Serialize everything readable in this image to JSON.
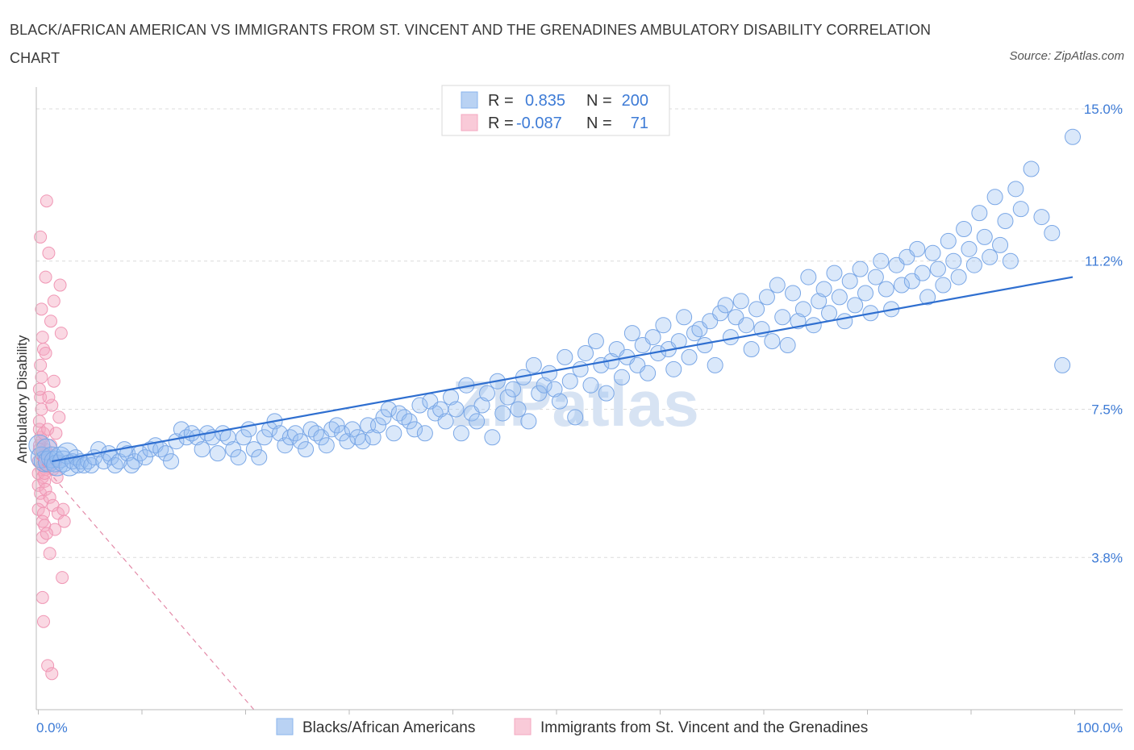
{
  "title": "BLACK/AFRICAN AMERICAN VS IMMIGRANTS FROM ST. VINCENT AND THE GRENADINES AMBULATORY DISABILITY CORRELATION CHART",
  "source": "Source: ZipAtlas.com",
  "watermark": "ZIPatlas",
  "colors": {
    "blue": "#8ab4ec",
    "blue_line": "#2f6fd0",
    "pink": "#f4a8c0",
    "pink_line": "#e3799c",
    "accent_text": "#3d7bd6"
  },
  "legend": {
    "r_label": "R =",
    "n_label": "N =",
    "rows": [
      {
        "r": "0.835",
        "n": "200"
      },
      {
        "r": "-0.087",
        "n": "71"
      }
    ]
  },
  "chart_data": {
    "type": "scatter",
    "ylabel": "Ambulatory Disability",
    "xlim": [
      0,
      100
    ],
    "ylim": [
      0.0,
      15.0
    ],
    "x_tick_labels": [
      "0.0%",
      "100.0%"
    ],
    "y_ticks": [
      {
        "value": 3.8,
        "label": "3.8%"
      },
      {
        "value": 7.5,
        "label": "7.5%"
      },
      {
        "value": 11.2,
        "label": "11.2%"
      },
      {
        "value": 15.0,
        "label": "15.0%"
      }
    ],
    "grid": true,
    "series": [
      {
        "name": "Blacks/African Americans",
        "r": 0.835,
        "n": 200,
        "trend": {
          "x": [
            1.5,
            100
          ],
          "y": [
            6.2,
            10.8
          ]
        },
        "points": [
          [
            0.3,
            6.6
          ],
          [
            0.5,
            6.3
          ],
          [
            0.8,
            6.2
          ],
          [
            1.0,
            6.5
          ],
          [
            1.2,
            6.2
          ],
          [
            1.5,
            6.3
          ],
          [
            1.8,
            6.2
          ],
          [
            2.0,
            6.1
          ],
          [
            2.3,
            6.3
          ],
          [
            2.6,
            6.2
          ],
          [
            3.0,
            6.4
          ],
          [
            3.2,
            6.1
          ],
          [
            3.5,
            6.2
          ],
          [
            3.8,
            6.3
          ],
          [
            4.0,
            6.1
          ],
          [
            4.3,
            6.2
          ],
          [
            4.6,
            6.1
          ],
          [
            5.0,
            6.2
          ],
          [
            5.3,
            6.1
          ],
          [
            5.6,
            6.3
          ],
          [
            6.0,
            6.5
          ],
          [
            6.5,
            6.2
          ],
          [
            7.0,
            6.4
          ],
          [
            7.2,
            6.3
          ],
          [
            7.6,
            6.1
          ],
          [
            8.0,
            6.2
          ],
          [
            8.5,
            6.5
          ],
          [
            8.8,
            6.4
          ],
          [
            9.2,
            6.1
          ],
          [
            9.5,
            6.2
          ],
          [
            10.0,
            6.4
          ],
          [
            10.5,
            6.3
          ],
          [
            11.0,
            6.5
          ],
          [
            11.5,
            6.6
          ],
          [
            12.0,
            6.5
          ],
          [
            12.5,
            6.4
          ],
          [
            13.0,
            6.2
          ],
          [
            13.5,
            6.7
          ],
          [
            14.0,
            7.0
          ],
          [
            14.5,
            6.8
          ],
          [
            15.0,
            6.9
          ],
          [
            15.5,
            6.8
          ],
          [
            16.0,
            6.5
          ],
          [
            16.5,
            6.9
          ],
          [
            17.0,
            6.8
          ],
          [
            17.5,
            6.4
          ],
          [
            18.0,
            6.9
          ],
          [
            18.5,
            6.8
          ],
          [
            19.0,
            6.5
          ],
          [
            19.5,
            6.3
          ],
          [
            20.0,
            6.8
          ],
          [
            20.5,
            7.0
          ],
          [
            21.0,
            6.5
          ],
          [
            21.5,
            6.3
          ],
          [
            22.0,
            6.8
          ],
          [
            22.5,
            7.0
          ],
          [
            23.0,
            7.2
          ],
          [
            23.5,
            6.9
          ],
          [
            24.0,
            6.6
          ],
          [
            24.5,
            6.8
          ],
          [
            25.0,
            6.9
          ],
          [
            25.5,
            6.7
          ],
          [
            26.0,
            6.5
          ],
          [
            26.5,
            7.0
          ],
          [
            27.0,
            6.9
          ],
          [
            27.5,
            6.8
          ],
          [
            28.0,
            6.6
          ],
          [
            28.5,
            7.0
          ],
          [
            29.0,
            7.1
          ],
          [
            29.5,
            6.9
          ],
          [
            30.0,
            6.7
          ],
          [
            30.5,
            7.0
          ],
          [
            31.0,
            6.8
          ],
          [
            31.5,
            6.7
          ],
          [
            32.0,
            7.1
          ],
          [
            32.5,
            6.8
          ],
          [
            33.0,
            7.1
          ],
          [
            33.5,
            7.3
          ],
          [
            34.0,
            7.5
          ],
          [
            34.5,
            6.9
          ],
          [
            35.0,
            7.4
          ],
          [
            35.5,
            7.3
          ],
          [
            36.0,
            7.2
          ],
          [
            36.5,
            7.0
          ],
          [
            37.0,
            7.6
          ],
          [
            37.5,
            6.9
          ],
          [
            38.0,
            7.7
          ],
          [
            38.5,
            7.4
          ],
          [
            39.0,
            7.5
          ],
          [
            39.5,
            7.2
          ],
          [
            40.0,
            7.8
          ],
          [
            40.5,
            7.5
          ],
          [
            41.0,
            6.9
          ],
          [
            41.5,
            8.1
          ],
          [
            42.0,
            7.4
          ],
          [
            42.5,
            7.2
          ],
          [
            43.0,
            7.6
          ],
          [
            43.5,
            7.9
          ],
          [
            44.0,
            6.8
          ],
          [
            44.5,
            8.2
          ],
          [
            45.0,
            7.4
          ],
          [
            45.5,
            7.8
          ],
          [
            46.0,
            8.0
          ],
          [
            46.5,
            7.5
          ],
          [
            47.0,
            8.3
          ],
          [
            47.5,
            7.2
          ],
          [
            48.0,
            8.6
          ],
          [
            48.5,
            7.9
          ],
          [
            49.0,
            8.1
          ],
          [
            49.5,
            8.4
          ],
          [
            50.0,
            8.0
          ],
          [
            50.5,
            7.7
          ],
          [
            51.0,
            8.8
          ],
          [
            51.5,
            8.2
          ],
          [
            52.0,
            7.3
          ],
          [
            52.5,
            8.5
          ],
          [
            53.0,
            8.9
          ],
          [
            53.5,
            8.1
          ],
          [
            54.0,
            9.2
          ],
          [
            54.5,
            8.6
          ],
          [
            55.0,
            7.9
          ],
          [
            55.5,
            8.7
          ],
          [
            56.0,
            9.0
          ],
          [
            56.5,
            8.3
          ],
          [
            57.0,
            8.8
          ],
          [
            57.5,
            9.4
          ],
          [
            58.0,
            8.6
          ],
          [
            58.5,
            9.1
          ],
          [
            59.0,
            8.4
          ],
          [
            59.5,
            9.3
          ],
          [
            60.0,
            8.9
          ],
          [
            60.5,
            9.6
          ],
          [
            61.0,
            9.0
          ],
          [
            61.5,
            8.5
          ],
          [
            62.0,
            9.2
          ],
          [
            62.5,
            9.8
          ],
          [
            63.0,
            8.8
          ],
          [
            63.5,
            9.4
          ],
          [
            64.0,
            9.5
          ],
          [
            64.5,
            9.1
          ],
          [
            65.0,
            9.7
          ],
          [
            65.5,
            8.6
          ],
          [
            66.0,
            9.9
          ],
          [
            66.5,
            10.1
          ],
          [
            67.0,
            9.3
          ],
          [
            67.5,
            9.8
          ],
          [
            68.0,
            10.2
          ],
          [
            68.5,
            9.6
          ],
          [
            69.0,
            9.0
          ],
          [
            69.5,
            10.0
          ],
          [
            70.0,
            9.5
          ],
          [
            70.5,
            10.3
          ],
          [
            71.0,
            9.2
          ],
          [
            71.5,
            10.6
          ],
          [
            72.0,
            9.8
          ],
          [
            72.5,
            9.1
          ],
          [
            73.0,
            10.4
          ],
          [
            73.5,
            9.7
          ],
          [
            74.0,
            10.0
          ],
          [
            74.5,
            10.8
          ],
          [
            75.0,
            9.6
          ],
          [
            75.5,
            10.2
          ],
          [
            76.0,
            10.5
          ],
          [
            76.5,
            9.9
          ],
          [
            77.0,
            10.9
          ],
          [
            77.5,
            10.3
          ],
          [
            78.0,
            9.7
          ],
          [
            78.5,
            10.7
          ],
          [
            79.0,
            10.1
          ],
          [
            79.5,
            11.0
          ],
          [
            80.0,
            10.4
          ],
          [
            80.5,
            9.9
          ],
          [
            81.0,
            10.8
          ],
          [
            81.5,
            11.2
          ],
          [
            82.0,
            10.5
          ],
          [
            82.5,
            10.0
          ],
          [
            83.0,
            11.1
          ],
          [
            83.5,
            10.6
          ],
          [
            84.0,
            11.3
          ],
          [
            84.5,
            10.7
          ],
          [
            85.0,
            11.5
          ],
          [
            85.5,
            10.9
          ],
          [
            86.0,
            10.3
          ],
          [
            86.5,
            11.4
          ],
          [
            87.0,
            11.0
          ],
          [
            87.5,
            10.6
          ],
          [
            88.0,
            11.7
          ],
          [
            88.5,
            11.2
          ],
          [
            89.0,
            10.8
          ],
          [
            89.5,
            12.0
          ],
          [
            90.0,
            11.5
          ],
          [
            90.5,
            11.1
          ],
          [
            91.0,
            12.4
          ],
          [
            91.5,
            11.8
          ],
          [
            92.0,
            11.3
          ],
          [
            92.5,
            12.8
          ],
          [
            93.0,
            11.6
          ],
          [
            93.5,
            12.2
          ],
          [
            94.0,
            11.2
          ],
          [
            94.5,
            13.0
          ],
          [
            95.0,
            12.5
          ],
          [
            96.0,
            13.5
          ],
          [
            97.0,
            12.3
          ],
          [
            98.0,
            11.9
          ],
          [
            99.0,
            8.6
          ],
          [
            100.0,
            14.3
          ]
        ]
      },
      {
        "name": "Immigrants from St. Vincent and the Grenadines",
        "r": -0.087,
        "n": 71,
        "trend": {
          "x": [
            0,
            21
          ],
          "y": [
            6.3,
            0.0
          ]
        },
        "points": [
          [
            0.2,
            6.2
          ],
          [
            0.4,
            6.4
          ],
          [
            0.6,
            6.1
          ],
          [
            0.3,
            6.6
          ],
          [
            0.5,
            6.0
          ],
          [
            0.7,
            6.3
          ],
          [
            0.2,
            5.9
          ],
          [
            0.9,
            6.5
          ],
          [
            0.4,
            6.8
          ],
          [
            0.6,
            5.8
          ],
          [
            0.3,
            7.0
          ],
          [
            0.8,
            6.2
          ],
          [
            0.5,
            6.7
          ],
          [
            0.2,
            5.6
          ],
          [
            0.7,
            6.9
          ],
          [
            0.4,
            5.4
          ],
          [
            0.9,
            6.0
          ],
          [
            0.3,
            7.2
          ],
          [
            0.6,
            5.2
          ],
          [
            0.5,
            7.5
          ],
          [
            0.8,
            5.7
          ],
          [
            0.2,
            5.0
          ],
          [
            0.4,
            7.8
          ],
          [
            0.7,
            4.9
          ],
          [
            0.3,
            8.0
          ],
          [
            0.6,
            4.7
          ],
          [
            1.0,
            6.4
          ],
          [
            0.9,
            5.5
          ],
          [
            1.2,
            6.1
          ],
          [
            1.1,
            7.0
          ],
          [
            0.5,
            8.3
          ],
          [
            0.8,
            4.6
          ],
          [
            1.3,
            5.3
          ],
          [
            0.4,
            8.6
          ],
          [
            1.4,
            6.6
          ],
          [
            0.7,
            9.0
          ],
          [
            1.6,
            5.1
          ],
          [
            0.6,
            9.3
          ],
          [
            1.5,
            7.6
          ],
          [
            1.8,
            4.5
          ],
          [
            0.5,
            10.0
          ],
          [
            1.7,
            8.2
          ],
          [
            0.9,
            10.8
          ],
          [
            1.9,
            6.9
          ],
          [
            1.2,
            11.4
          ],
          [
            2.0,
            5.8
          ],
          [
            0.4,
            11.8
          ],
          [
            2.2,
            7.3
          ],
          [
            1.0,
            12.7
          ],
          [
            2.1,
            4.9
          ],
          [
            1.3,
            3.9
          ],
          [
            2.5,
            3.3
          ],
          [
            0.6,
            2.8
          ],
          [
            0.7,
            2.2
          ],
          [
            1.1,
            1.1
          ],
          [
            1.5,
            0.9
          ],
          [
            0.8,
            6.3
          ],
          [
            1.6,
            6.0
          ],
          [
            0.3,
            6.5
          ],
          [
            1.2,
            7.8
          ],
          [
            0.9,
            8.9
          ],
          [
            2.4,
            9.4
          ],
          [
            1.7,
            10.2
          ],
          [
            2.3,
            10.6
          ],
          [
            1.4,
            9.7
          ],
          [
            0.6,
            4.3
          ],
          [
            2.6,
            5.0
          ],
          [
            0.8,
            5.9
          ],
          [
            1.9,
            6.2
          ],
          [
            2.7,
            4.7
          ],
          [
            1.0,
            4.4
          ]
        ]
      }
    ]
  }
}
